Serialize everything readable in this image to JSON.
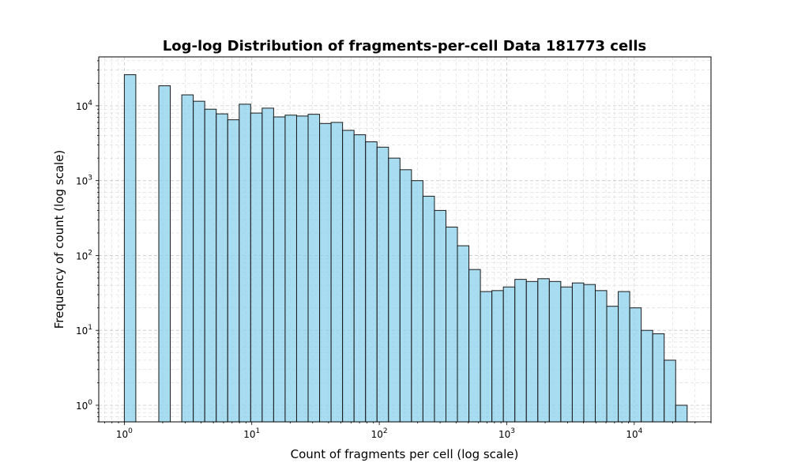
{
  "chart_data": {
    "type": "bar",
    "title": "Log-log Distribution of fragments-per-cell Data 181773 cells",
    "xlabel": "Count of fragments per cell (log scale)",
    "ylabel": "Frequency of count (log scale)",
    "xscale": "log",
    "yscale": "log",
    "xlim": [
      0.63,
      40000
    ],
    "ylim": [
      0.6,
      45000
    ],
    "grid": true,
    "grid_style": "dashed, major and minor",
    "bar_color": "#87CEEB",
    "edge_color": "#1a1a1a",
    "x_ticks": [
      1,
      10,
      100,
      1000,
      10000
    ],
    "x_tick_labels": [
      {
        "base": "10",
        "exp": "0"
      },
      {
        "base": "10",
        "exp": "1"
      },
      {
        "base": "10",
        "exp": "2"
      },
      {
        "base": "10",
        "exp": "3"
      },
      {
        "base": "10",
        "exp": "4"
      }
    ],
    "y_ticks": [
      1,
      10,
      100,
      1000,
      10000
    ],
    "y_tick_labels": [
      {
        "base": "10",
        "exp": "0"
      },
      {
        "base": "10",
        "exp": "1"
      },
      {
        "base": "10",
        "exp": "2"
      },
      {
        "base": "10",
        "exp": "3"
      },
      {
        "base": "10",
        "exp": "4"
      }
    ],
    "bins": {
      "start": 1,
      "end": 26000,
      "count": 49,
      "spacing": "log"
    },
    "counts": [
      26000,
      0,
      0,
      18500,
      0,
      14000,
      11500,
      9000,
      7800,
      6500,
      10500,
      8000,
      9300,
      7100,
      7500,
      7300,
      7700,
      5800,
      6000,
      4700,
      4100,
      3300,
      2800,
      2000,
      1400,
      1000,
      620,
      400,
      240,
      135,
      65,
      33,
      34,
      38,
      48,
      45,
      49,
      45,
      38,
      43,
      41,
      34,
      21,
      33,
      20,
      10,
      9,
      4,
      1
    ]
  }
}
